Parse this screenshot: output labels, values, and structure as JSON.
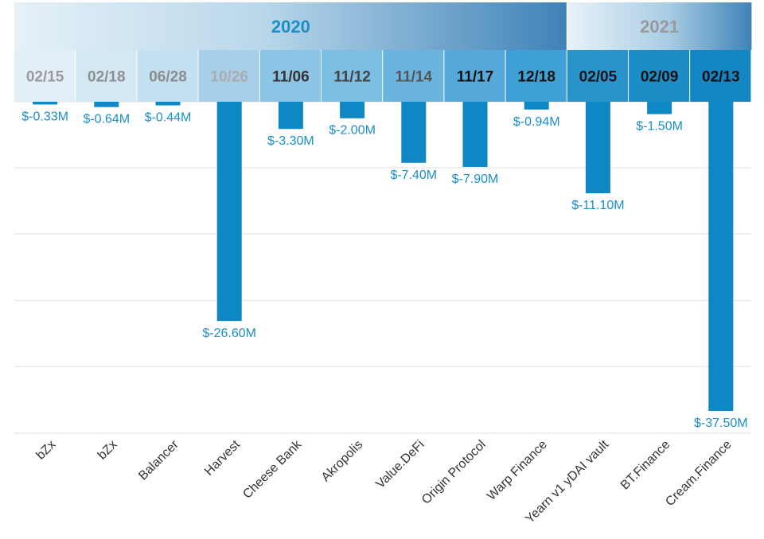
{
  "chart_data": {
    "type": "bar",
    "title": "",
    "xlabel": "",
    "ylabel": "",
    "ylim": [
      -37.5,
      0
    ],
    "grid": true,
    "years": [
      {
        "label": "2020",
        "from": 0,
        "to": 9
      },
      {
        "label": "2021",
        "from": 9,
        "to": 12
      }
    ],
    "dates": [
      "02/15",
      "02/18",
      "06/28",
      "10/26",
      "11/06",
      "11/12",
      "11/14",
      "11/17",
      "12/18",
      "02/05",
      "02/09",
      "02/13"
    ],
    "categories": [
      "bZx",
      "bZx",
      "Balancer",
      "Harvest",
      "Cheese Bank",
      "Akropolis",
      "Value.DeFi",
      "Origin Protocol",
      "Warp Finance",
      "Yearn v1 yDAI vault",
      "BT.Finance",
      "Cream.Finance"
    ],
    "values": [
      -0.33,
      -0.64,
      -0.44,
      -26.6,
      -3.3,
      -2.0,
      -7.4,
      -7.9,
      -0.94,
      -11.1,
      -1.5,
      -37.5
    ],
    "value_labels": [
      "$-0.33M",
      "$-0.64M",
      "$-0.44M",
      "$-26.60M",
      "$-3.30M",
      "$-2.00M",
      "$-7.40M",
      "$-7.90M",
      "$-0.94M",
      "$-11.10M",
      "$-1.50M",
      "$-37.50M"
    ],
    "colors": {
      "bar": "#0e88c4",
      "value_label": "#1a8fc9",
      "year_2020_text": "#1a8fc9",
      "year_2021_text": "#9a9a9a",
      "grid": "#dddddd",
      "category_text": "#333333"
    }
  }
}
